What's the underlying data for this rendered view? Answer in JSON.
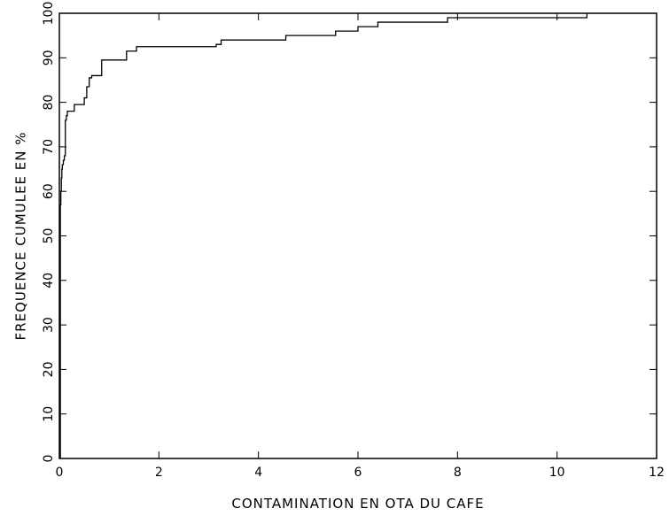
{
  "chart_data": {
    "type": "line",
    "line_style": "step",
    "title": "",
    "xlabel": "CONTAMINATION EN OTA DU CAFE",
    "ylabel": "FREQUENCE CUMULEE EN %",
    "xlim": [
      0,
      12
    ],
    "ylim": [
      0,
      100
    ],
    "xticks": [
      0,
      2,
      4,
      6,
      8,
      10,
      12
    ],
    "yticks": [
      0,
      10,
      20,
      30,
      40,
      50,
      60,
      70,
      80,
      90,
      100
    ],
    "grid": false,
    "line_color": "#000000",
    "series": [
      {
        "x": [
          0,
          0.02,
          0.03,
          0.04,
          0.05,
          0.06,
          0.08,
          0.1,
          0.12,
          0.14,
          0.16,
          0.2,
          0.3,
          0.4,
          0.5,
          0.55,
          0.6,
          0.65,
          0.7,
          0.85,
          1.35,
          1.55,
          3.15,
          3.25,
          4.55,
          5.55,
          6.0,
          6.4,
          7.8,
          10.6
        ],
        "y": [
          0,
          57,
          60,
          63,
          65,
          66,
          67,
          68,
          76,
          77,
          78,
          78,
          79.5,
          79.5,
          81,
          83.5,
          85.5,
          86,
          86,
          89.5,
          91.5,
          92.5,
          93,
          94,
          95,
          96,
          97,
          98,
          99,
          100
        ]
      }
    ]
  }
}
